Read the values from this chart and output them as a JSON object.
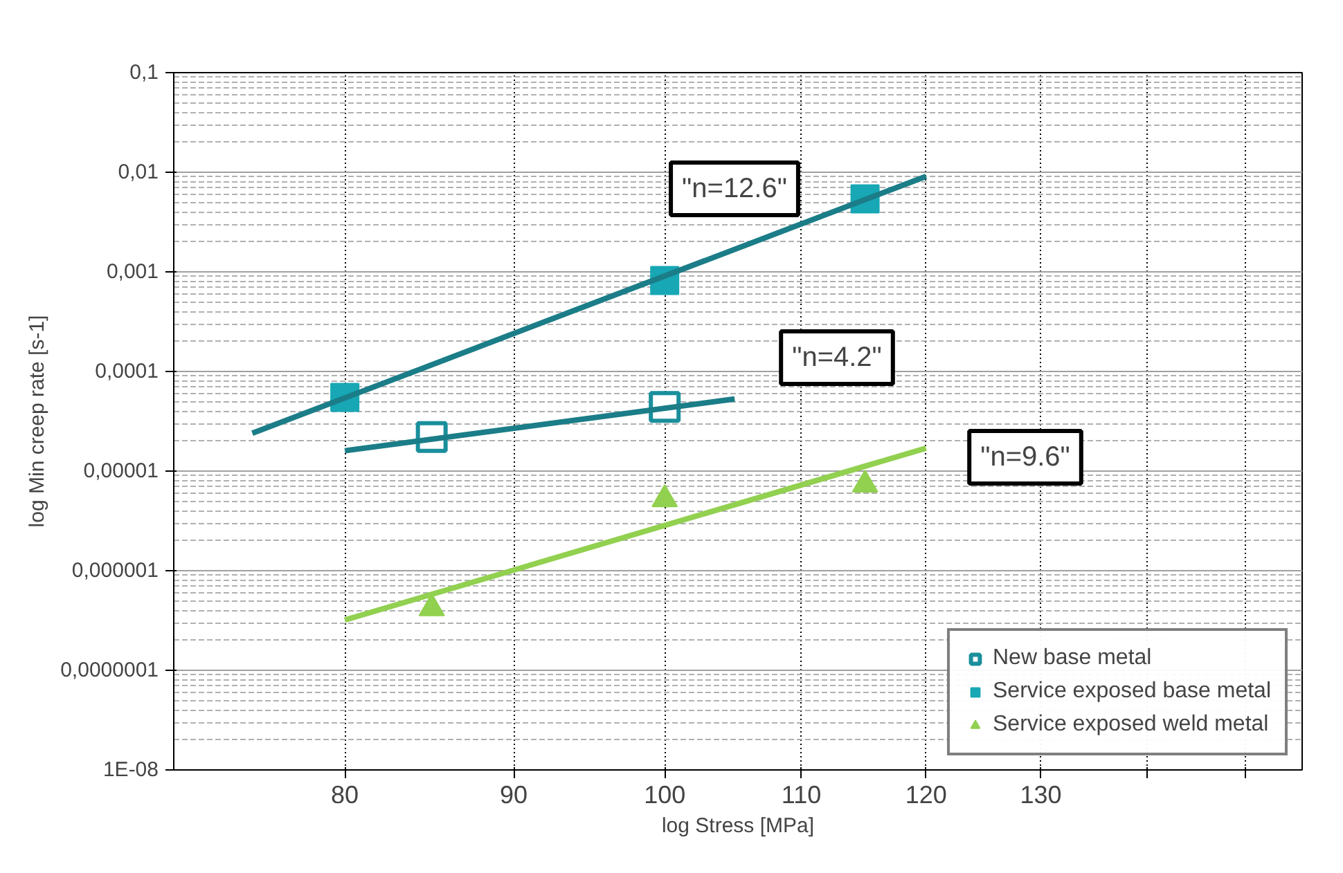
{
  "chart_data": {
    "type": "scatter",
    "xlabel": "log Stress [MPa]",
    "ylabel": "log Min creep rate [s-1]",
    "log": "xy",
    "grid": true,
    "legend": "bottom right",
    "xlim": [
      71,
      156
    ],
    "xticks": [
      80,
      90,
      100,
      110,
      120,
      130,
      {
        "value": 140,
        "label": null
      },
      {
        "value": 150,
        "label": null
      }
    ],
    "ylim": [
      1e-08,
      0.1
    ],
    "yticks": [
      {
        "value": 1e-08,
        "label": "1E-08"
      },
      {
        "value": 1e-07,
        "label": "0,0000001"
      },
      {
        "value": 1e-06,
        "label": "0,000001"
      },
      {
        "value": 1e-05,
        "label": "0,00001"
      },
      {
        "value": 0.0001,
        "label": "0,0001"
      },
      {
        "value": 0.001,
        "label": "0,001"
      },
      {
        "value": 0.01,
        "label": "0,01"
      },
      {
        "value": 0.1,
        "label": "0,1"
      }
    ],
    "series": [
      {
        "name": "New base metal",
        "marker": "square_open",
        "color": "#1a8f9c",
        "x": [
          85,
          100
        ],
        "values": [
          2.2e-05,
          4.4e-05
        ]
      },
      {
        "name": "Service exposed base metal",
        "marker": "square",
        "color": "#17a7b5",
        "x": [
          80,
          100,
          115
        ],
        "values": [
          5.5e-05,
          0.00082,
          0.0054
        ]
      },
      {
        "name": "Service exposed weld metal",
        "marker": "triangle",
        "color": "#92d050",
        "x": [
          85,
          100,
          115
        ],
        "values": [
          4.2e-07,
          5.2e-06,
          7.3e-06
        ]
      },
      {
        "type": "line",
        "color": "#1b7d88",
        "x": [
          75,
          120
        ],
        "values": [
          2.4e-05,
          0.0091
        ]
      },
      {
        "type": "line",
        "color": "#1b7d88",
        "x": [
          80,
          105
        ],
        "values": [
          1.6e-05,
          5.3e-05
        ]
      },
      {
        "type": "line",
        "color": "#92d050",
        "x": [
          80,
          120
        ],
        "values": [
          3.2e-07,
          1.7e-05
        ]
      }
    ],
    "annotations": [
      "\"n=12.6\"",
      "\"n=4.2\"",
      "\"n=9.6\""
    ]
  }
}
